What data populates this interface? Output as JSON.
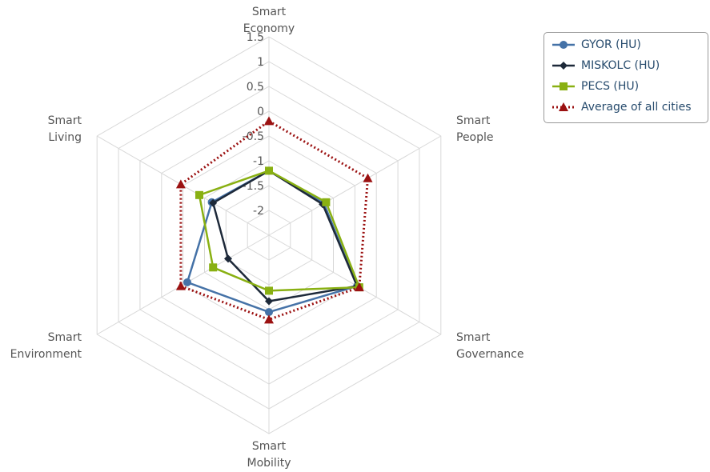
{
  "chart_data": {
    "type": "radar",
    "categories": [
      [
        "Smart",
        "Economy"
      ],
      [
        "Smart",
        "People"
      ],
      [
        "Smart",
        "Governance"
      ],
      [
        "Smart",
        "Mobility"
      ],
      [
        "Smart",
        "Environment"
      ],
      [
        "Smart",
        "Living"
      ]
    ],
    "ticks": [
      "1.5",
      "1",
      "0.5",
      "0",
      "-0.5",
      "-1",
      "-1.5",
      "-2"
    ],
    "rlim": [
      -2.5,
      1.5
    ],
    "series": [
      {
        "name": "GYOR (HU)",
        "color": "#4572a7",
        "marker": "circle",
        "dash": "solid",
        "values": [
          -1.2,
          -1.22,
          -0.45,
          -0.95,
          -0.6,
          -1.17
        ]
      },
      {
        "name": "MISKOLC (HU)",
        "color": "#1d2939",
        "marker": "diamond",
        "dash": "solid",
        "values": [
          -1.2,
          -1.25,
          -0.45,
          -1.17,
          -1.55,
          -1.2
        ]
      },
      {
        "name": "PECS (HU)",
        "color": "#89b012",
        "marker": "square",
        "dash": "solid",
        "values": [
          -1.2,
          -1.17,
          -0.4,
          -1.38,
          -1.2,
          -0.88
        ]
      },
      {
        "name": "Average of all cities",
        "color": "#9b1111",
        "marker": "triangle",
        "dash": "dotted",
        "values": [
          -0.2,
          -0.2,
          -0.4,
          -0.8,
          -0.45,
          -0.45
        ]
      }
    ]
  }
}
